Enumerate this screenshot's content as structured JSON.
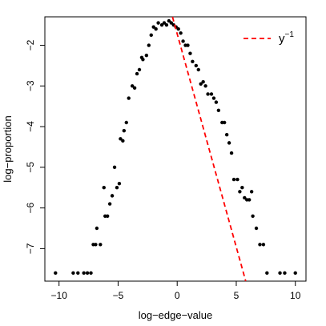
{
  "chart_data": {
    "type": "scatter",
    "title": "",
    "xlabel": "log−edge−value",
    "ylabel": "log−proportion",
    "xlim": [
      -11.2,
      10.9
    ],
    "ylim": [
      -7.8,
      -1.3
    ],
    "xticks": [
      -10,
      -5,
      0,
      5,
      10
    ],
    "xtick_labels": [
      "−10",
      "−5",
      "0",
      "5",
      "10"
    ],
    "yticks": [
      -7,
      -6,
      -5,
      -4,
      -3,
      -2
    ],
    "ytick_labels": [
      "−7",
      "−6",
      "−5",
      "−4",
      "−3",
      "−2"
    ],
    "grid": false,
    "legend_position": "top-right",
    "legend_label": "y",
    "legend_label_sup": "−1",
    "point_color": "#000000",
    "line_color": "#ff0000",
    "series": [
      {
        "type": "scatter",
        "x": [
          -10.3,
          -8.8,
          -8.4,
          -7.9,
          -7.6,
          -7.3,
          -7.1,
          -6.9,
          -6.8,
          -6.5,
          -6.2,
          -6.1,
          -5.9,
          -5.7,
          -5.5,
          -5.3,
          -5.1,
          -4.9,
          -4.8,
          -4.6,
          -4.5,
          -4.3,
          -4.1,
          -3.8,
          -3.6,
          -3.4,
          -3.2,
          -3.0,
          -2.9,
          -2.6,
          -2.4,
          -2.2,
          -2.0,
          -1.8,
          -1.6,
          -1.3,
          -1.1,
          -0.9,
          -0.7,
          -0.5,
          -0.3,
          -0.1,
          0.1,
          0.3,
          0.5,
          0.7,
          0.9,
          1.1,
          1.3,
          1.6,
          1.8,
          2.0,
          2.2,
          2.4,
          2.6,
          2.9,
          3.1,
          3.3,
          3.5,
          3.8,
          4.0,
          4.2,
          4.4,
          4.6,
          4.8,
          5.1,
          5.3,
          5.5,
          5.7,
          5.9,
          6.1,
          6.3,
          6.4,
          6.7,
          7.0,
          7.3,
          7.6,
          8.7,
          9.1,
          10.0
        ],
        "y": [
          -7.6,
          -7.6,
          -7.6,
          -7.6,
          -7.6,
          -7.6,
          -6.9,
          -6.9,
          -6.5,
          -6.9,
          -5.5,
          -6.2,
          -6.2,
          -5.9,
          -5.7,
          -5.0,
          -5.5,
          -5.4,
          -4.3,
          -4.35,
          -4.1,
          -3.9,
          -3.3,
          -3.0,
          -3.05,
          -2.7,
          -2.6,
          -2.3,
          -2.35,
          -2.25,
          -2.0,
          -1.75,
          -1.55,
          -1.6,
          -1.45,
          -1.5,
          -1.45,
          -1.5,
          -1.4,
          -1.45,
          -1.5,
          -1.55,
          -1.6,
          -1.7,
          -1.9,
          -2.0,
          -2.0,
          -2.2,
          -2.4,
          -2.5,
          -2.6,
          -2.95,
          -2.9,
          -3.0,
          -3.2,
          -3.2,
          -3.3,
          -3.4,
          -3.6,
          -3.9,
          -3.9,
          -4.2,
          -4.4,
          -4.65,
          -5.3,
          -5.3,
          -5.6,
          -5.5,
          -5.75,
          -5.8,
          -5.8,
          -5.6,
          -6.2,
          -6.5,
          -6.9,
          -6.9,
          -7.6,
          -7.6,
          -7.6,
          -7.6
        ]
      },
      {
        "type": "line",
        "name": "y",
        "x": [
          -0.4,
          5.8
        ],
        "y": [
          -1.3,
          -7.8
        ]
      }
    ]
  }
}
